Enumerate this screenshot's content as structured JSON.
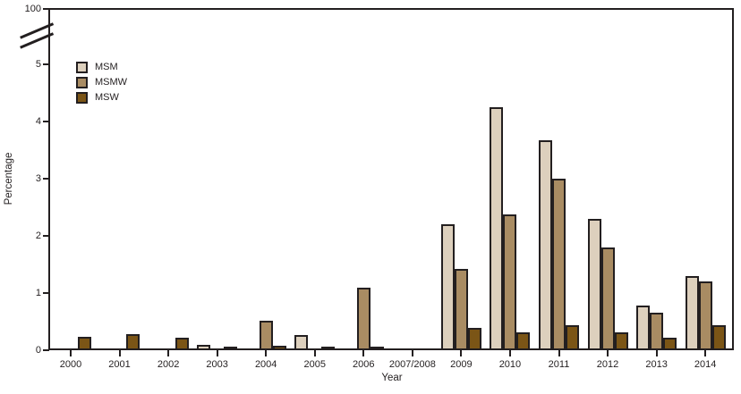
{
  "figure": {
    "ylabel": "Percentage",
    "xlabel": "Year",
    "text_color": "#231f20",
    "outline_color": "#231f20",
    "background_color": "#ffffff"
  },
  "chart_data": {
    "type": "bar",
    "title": "",
    "xlabel": "Year",
    "ylabel": "Percentage",
    "categories": [
      "2000",
      "2001",
      "2002",
      "2003",
      "2004",
      "2005",
      "2006",
      "2007/2008",
      "2009",
      "2010",
      "2011",
      "2012",
      "2013",
      "2014"
    ],
    "series": [
      {
        "name": "MSM",
        "color": "#ddd0bd",
        "values": [
          0,
          0,
          0,
          0.09,
          0,
          0.26,
          0,
          0,
          2.2,
          4.25,
          3.67,
          2.3,
          0.78,
          1.3
        ]
      },
      {
        "name": "MSMW",
        "color": "#a98c63",
        "values": [
          0,
          0,
          0,
          0,
          0.51,
          0,
          1.09,
          0,
          1.42,
          2.37,
          3.0,
          1.8,
          0.66,
          1.2
        ]
      },
      {
        "name": "MSW",
        "color": "#7b5516",
        "values": [
          0.23,
          0.28,
          0.22,
          0.06,
          0.08,
          0.06,
          0.07,
          0,
          0.39,
          0.31,
          0.44,
          0.31,
          0.22,
          0.43
        ]
      }
    ],
    "y_ticks": [
      "0",
      "1",
      "2",
      "3",
      "4",
      "5",
      "100"
    ],
    "ylim_display": [
      0,
      5
    ],
    "axis_break": true,
    "axis_break_top_value": 100,
    "grid": false,
    "legend_position": "upper-left",
    "legend_entries": [
      "MSM",
      "MSMW",
      "MSW"
    ]
  }
}
